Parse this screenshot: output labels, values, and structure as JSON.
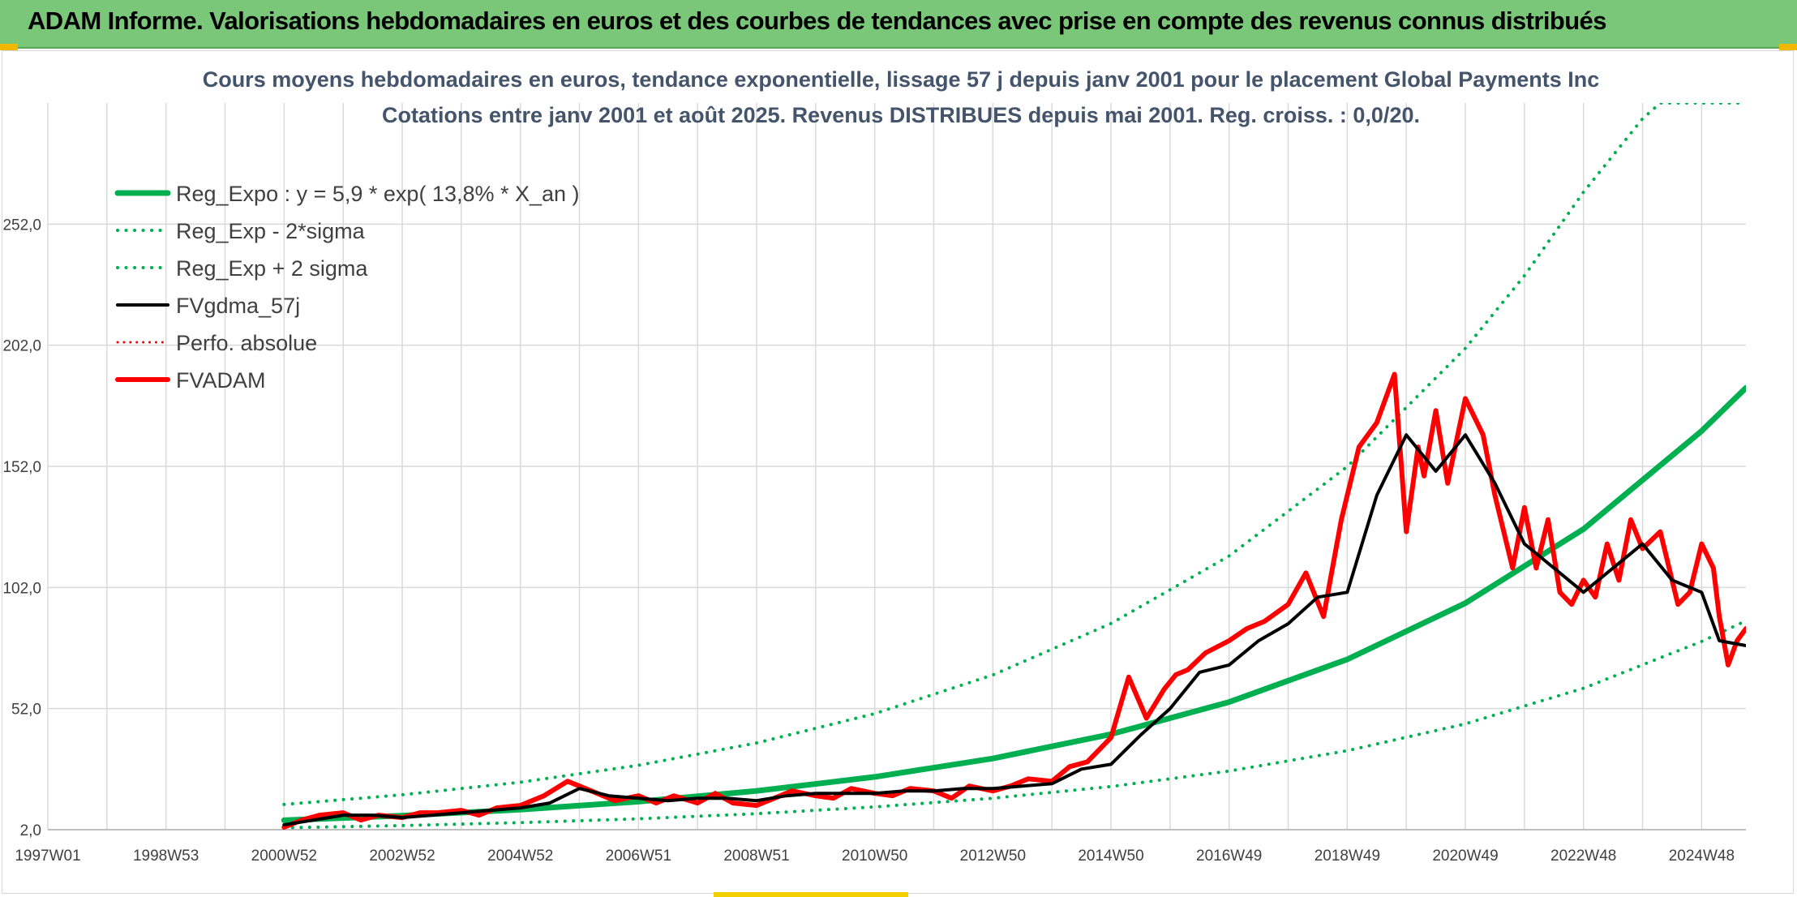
{
  "header": {
    "title": "ADAM Informe. Valorisations hebdomadaires en euros et des courbes de tendances avec prise en compte des revenus connus distribués"
  },
  "colors": {
    "green": "#00b050",
    "black": "#000000",
    "red": "#ff0000",
    "grid": "#d9d9d9",
    "title_bar": "#7ac77a"
  },
  "chart_data": {
    "type": "line",
    "title_line1": "Cours moyens hebdomadaires en euros, tendance exponentielle, lissage 57 j depuis janv 2001 pour le placement Global Payments Inc",
    "title_line2": "Cotations entre janv 2001 et août 2025. Revenus DISTRIBUES depuis mai 2001. Reg. croiss. : 0,0/20.",
    "xlim": [
      1997.0,
      2025.75
    ],
    "ylim": [
      2,
      302
    ],
    "x_ticks": [
      {
        "label": "1997W01",
        "x": 1997.0
      },
      {
        "label": "1998W53",
        "x": 1999.0
      },
      {
        "label": "2000W52",
        "x": 2001.0
      },
      {
        "label": "2002W52",
        "x": 2003.0
      },
      {
        "label": "2004W52",
        "x": 2005.0
      },
      {
        "label": "2006W51",
        "x": 2007.0
      },
      {
        "label": "2008W51",
        "x": 2009.0
      },
      {
        "label": "2010W50",
        "x": 2011.0
      },
      {
        "label": "2012W50",
        "x": 2013.0
      },
      {
        "label": "2014W50",
        "x": 2015.0
      },
      {
        "label": "2016W49",
        "x": 2017.0
      },
      {
        "label": "2018W49",
        "x": 2019.0
      },
      {
        "label": "2020W49",
        "x": 2021.0
      },
      {
        "label": "2022W48",
        "x": 2023.0
      },
      {
        "label": "2024W48",
        "x": 2025.0
      }
    ],
    "y_ticks": [
      {
        "label": "2,0",
        "y": 2
      },
      {
        "label": "52,0",
        "y": 52
      },
      {
        "label": "102,0",
        "y": 102
      },
      {
        "label": "152,0",
        "y": 152
      },
      {
        "label": "202,0",
        "y": 202
      },
      {
        "label": "252,0",
        "y": 252
      }
    ],
    "legend": [
      {
        "name": "Reg_Expo : y = 5,9 * exp( 13,8% *  X_an )",
        "color": "#00b050",
        "style": "solid",
        "width": 7
      },
      {
        "name": "Reg_Exp - 2*sigma",
        "color": "#00b050",
        "style": "dotted",
        "width": 4
      },
      {
        "name": "Reg_Exp + 2 sigma",
        "color": "#00b050",
        "style": "dotted",
        "width": 4
      },
      {
        "name": "FVgdma_57j",
        "color": "#000000",
        "style": "solid",
        "width": 4
      },
      {
        "name": "Perfo. absolue",
        "color": "#ff0000",
        "style": "dotted",
        "width": 3
      },
      {
        "name": "FVADAM",
        "color": "#ff0000",
        "style": "solid",
        "width": 6
      }
    ],
    "legend_position": "top-left",
    "grid": true,
    "series": [
      {
        "name": "Reg_Expo : y = 5,9 * exp( 13,8% *  X_an )",
        "x": [
          2001.0,
          2003.0,
          2005.0,
          2007.0,
          2009.0,
          2011.0,
          2013.0,
          2015.0,
          2017.0,
          2019.0,
          2021.0,
          2023.0,
          2025.0,
          2025.75
        ],
        "y": [
          5.9,
          7.8,
          10.3,
          13.6,
          18.0,
          23.8,
          31.4,
          41.4,
          54.7,
          72.3,
          95.5,
          126.1,
          166.6,
          184.4
        ]
      },
      {
        "name": "Reg_Exp - 2*sigma",
        "x": [
          2001.0,
          2003.0,
          2005.0,
          2007.0,
          2009.0,
          2011.0,
          2013.0,
          2015.0,
          2017.0,
          2019.0,
          2021.0,
          2023.0,
          2025.0,
          2025.75
        ],
        "y": [
          2.8,
          3.7,
          4.9,
          6.5,
          8.6,
          11.4,
          15.0,
          19.8,
          26.2,
          34.6,
          45.7,
          60.4,
          79.7,
          88.2
        ]
      },
      {
        "name": "Reg_Exp + 2 sigma",
        "x": [
          2001.0,
          2003.0,
          2005.0,
          2007.0,
          2009.0,
          2011.0,
          2013.0,
          2015.0,
          2017.0,
          2019.0,
          2021.0,
          2022.0,
          2023.0,
          2024.0,
          2024.3,
          2025.75
        ],
        "y": [
          12.4,
          16.4,
          21.6,
          28.6,
          37.8,
          49.9,
          65.9,
          87.1,
          115.0,
          151.9,
          200.7,
          230.7,
          265.2,
          295.5,
          302.0,
          302.0
        ]
      },
      {
        "name": "FVgdma_57j",
        "x": [
          2001.0,
          2001.5,
          2002.0,
          2002.5,
          2003.0,
          2003.5,
          2004.0,
          2004.5,
          2005.0,
          2005.5,
          2006.0,
          2006.5,
          2007.0,
          2007.5,
          2008.0,
          2008.5,
          2009.0,
          2009.5,
          2010.0,
          2010.5,
          2011.0,
          2011.5,
          2012.0,
          2012.5,
          2013.0,
          2013.5,
          2014.0,
          2014.5,
          2015.0,
          2015.5,
          2016.0,
          2016.5,
          2017.0,
          2017.5,
          2018.0,
          2018.5,
          2019.0,
          2019.5,
          2020.0,
          2020.5,
          2021.0,
          2021.5,
          2022.0,
          2022.5,
          2023.0,
          2023.5,
          2024.0,
          2024.5,
          2025.0,
          2025.3,
          2025.75
        ],
        "y": [
          4,
          6,
          8,
          8,
          7,
          8,
          9,
          10,
          11,
          13,
          19,
          16,
          15,
          14,
          15,
          15,
          14,
          16,
          17,
          17,
          17,
          18,
          18,
          19,
          19,
          20,
          21,
          27,
          29,
          41,
          52,
          67,
          70,
          80,
          87,
          98,
          100,
          140,
          165,
          150,
          165,
          145,
          120,
          110,
          100,
          110,
          120,
          105,
          100,
          80,
          78
        ]
      },
      {
        "name": "FVADAM",
        "x": [
          2001.0,
          2001.3,
          2001.6,
          2002.0,
          2002.3,
          2002.6,
          2003.0,
          2003.3,
          2003.6,
          2004.0,
          2004.3,
          2004.6,
          2005.0,
          2005.4,
          2005.8,
          2006.0,
          2006.3,
          2006.6,
          2007.0,
          2007.3,
          2007.6,
          2008.0,
          2008.3,
          2008.6,
          2009.0,
          2009.3,
          2009.6,
          2010.0,
          2010.3,
          2010.6,
          2011.0,
          2011.3,
          2011.6,
          2012.0,
          2012.3,
          2012.6,
          2013.0,
          2013.3,
          2013.6,
          2014.0,
          2014.3,
          2014.6,
          2015.0,
          2015.3,
          2015.6,
          2015.9,
          2016.1,
          2016.3,
          2016.6,
          2017.0,
          2017.3,
          2017.6,
          2018.0,
          2018.3,
          2018.6,
          2018.9,
          2019.2,
          2019.5,
          2019.8,
          2020.0,
          2020.2,
          2020.3,
          2020.5,
          2020.7,
          2021.0,
          2021.3,
          2021.5,
          2021.8,
          2022.0,
          2022.2,
          2022.4,
          2022.6,
          2022.8,
          2023.0,
          2023.2,
          2023.4,
          2023.6,
          2023.8,
          2024.0,
          2024.3,
          2024.6,
          2024.8,
          2025.0,
          2025.2,
          2025.3,
          2025.45,
          2025.6,
          2025.75
        ],
        "y": [
          3,
          6,
          8,
          9,
          6,
          8,
          7,
          9,
          9,
          10,
          8,
          11,
          12,
          16,
          22,
          20,
          17,
          14,
          16,
          13,
          16,
          13,
          17,
          13,
          12,
          15,
          18,
          16,
          15,
          19,
          17,
          16,
          19,
          18,
          15,
          20,
          18,
          20,
          23,
          22,
          28,
          30,
          40,
          65,
          48,
          60,
          66,
          68,
          75,
          80,
          85,
          88,
          95,
          108,
          90,
          130,
          160,
          170,
          190,
          125,
          160,
          148,
          175,
          145,
          180,
          165,
          140,
          110,
          135,
          110,
          130,
          100,
          95,
          105,
          98,
          120,
          105,
          130,
          118,
          125,
          95,
          100,
          120,
          110,
          90,
          70,
          80,
          85
        ]
      }
    ]
  }
}
